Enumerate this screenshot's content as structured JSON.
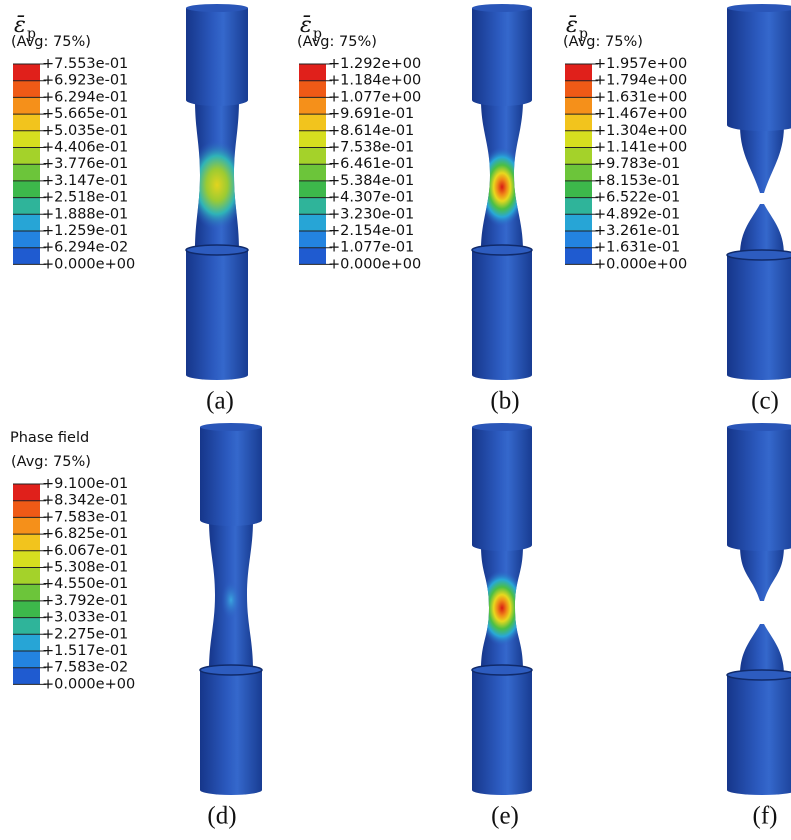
{
  "legends": [
    {
      "title": {
        "symbol": "ε̄",
        "subscript": "p"
      },
      "avg": "(Avg: 75%)",
      "labels": [
        "+7.553e-01",
        "+6.923e-01",
        "+6.294e-01",
        "+5.665e-01",
        "+5.035e-01",
        "+4.406e-01",
        "+3.776e-01",
        "+3.147e-01",
        "+2.518e-01",
        "+1.888e-01",
        "+1.259e-01",
        "+6.294e-02",
        "+0.000e+00"
      ]
    },
    {
      "title": {
        "symbol": "ε̄",
        "subscript": "p"
      },
      "avg": "(Avg: 75%)",
      "labels": [
        "+1.292e+00",
        "+1.184e+00",
        "+1.077e+00",
        "+9.691e-01",
        "+8.614e-01",
        "+7.538e-01",
        "+6.461e-01",
        "+5.384e-01",
        "+4.307e-01",
        "+3.230e-01",
        "+2.154e-01",
        "+1.077e-01",
        "+0.000e+00"
      ]
    },
    {
      "title": {
        "symbol": "ε̄",
        "subscript": "p"
      },
      "avg": "(Avg: 75%)",
      "labels": [
        "+1.957e+00",
        "+1.794e+00",
        "+1.631e+00",
        "+1.467e+00",
        "+1.304e+00",
        "+1.141e+00",
        "+9.783e-01",
        "+8.153e-01",
        "+6.522e-01",
        "+4.892e-01",
        "+3.261e-01",
        "+1.631e-01",
        "+0.000e+00"
      ]
    },
    {
      "title": "Phase field",
      "avg": "(Avg: 75%)",
      "labels": [
        "+9.100e-01",
        "+8.342e-01",
        "+7.583e-01",
        "+6.825e-01",
        "+6.067e-01",
        "+5.308e-01",
        "+4.550e-01",
        "+3.792e-01",
        "+3.033e-01",
        "+2.275e-01",
        "+1.517e-01",
        "+7.583e-02",
        "+0.000e+00"
      ]
    }
  ],
  "panel_labels": [
    "(a)",
    "(b)",
    "(c)",
    "(d)",
    "(e)",
    "(f)"
  ]
}
